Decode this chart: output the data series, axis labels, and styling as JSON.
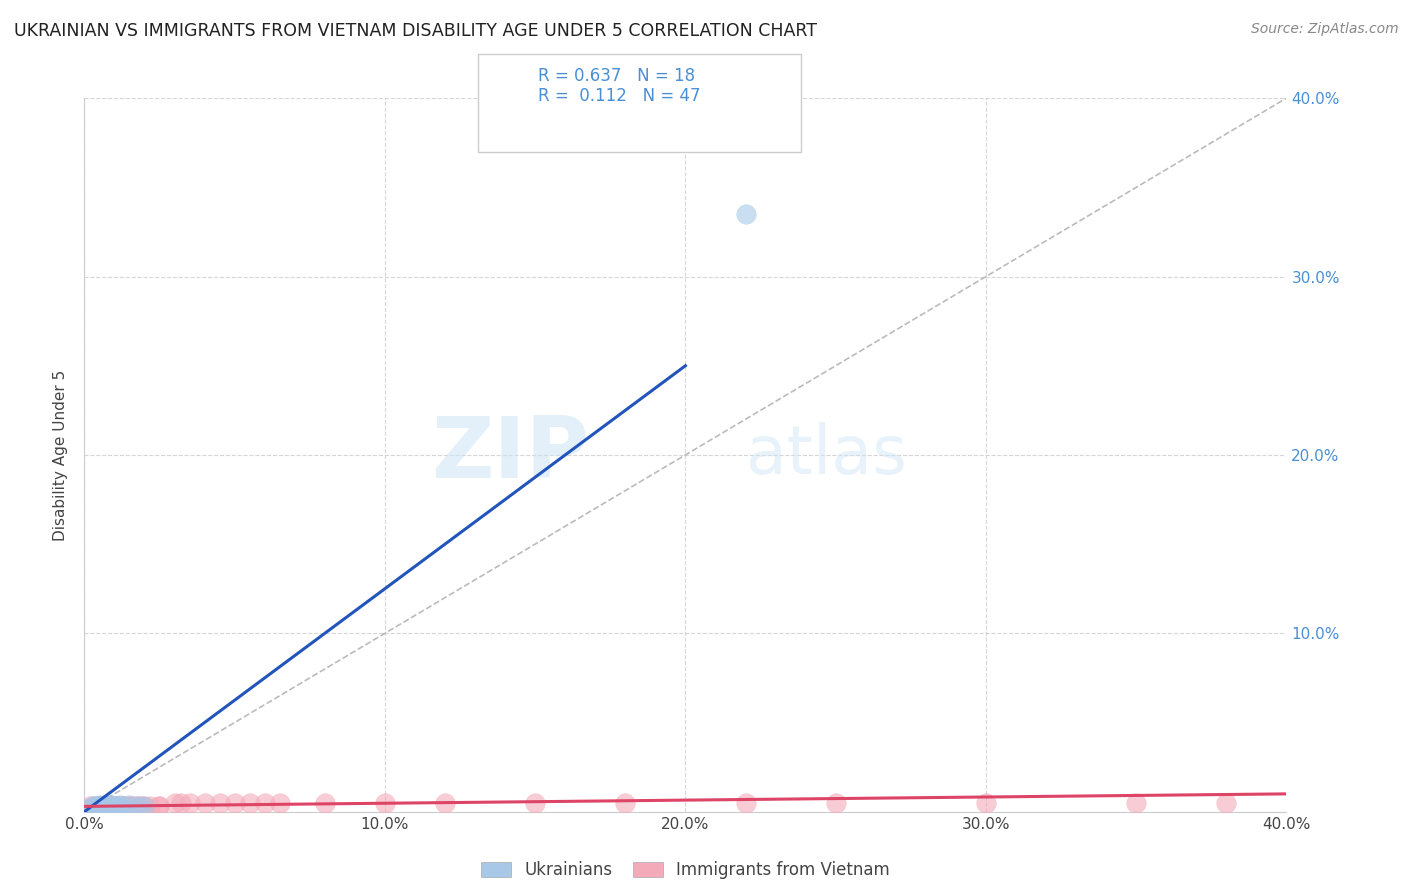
{
  "title": "UKRAINIAN VS IMMIGRANTS FROM VIETNAM DISABILITY AGE UNDER 5 CORRELATION CHART",
  "source": "Source: ZipAtlas.com",
  "ylabel": "Disability Age Under 5",
  "xlim": [
    0.0,
    0.4
  ],
  "ylim": [
    0.0,
    0.4
  ],
  "x_ticks": [
    0.0,
    0.1,
    0.2,
    0.3,
    0.4
  ],
  "y_ticks": [
    0.0,
    0.1,
    0.2,
    0.3,
    0.4
  ],
  "legend_labels": [
    "Ukrainians",
    "Immigrants from Vietnam"
  ],
  "blue_R": "0.637",
  "blue_N": "18",
  "pink_R": "0.112",
  "pink_N": "47",
  "blue_scatter_color": "#a8c8e8",
  "pink_scatter_color": "#f4aab8",
  "blue_line_color": "#2255bb",
  "pink_line_color": "#dd4466",
  "diagonal_color": "#bbbbbb",
  "background_color": "#ffffff",
  "watermark_zip": "ZIP",
  "watermark_atlas": "atlas",
  "title_fontsize": 12.5,
  "source_fontsize": 10,
  "ukrainians_x": [
    0.002,
    0.003,
    0.004,
    0.005,
    0.005,
    0.006,
    0.007,
    0.007,
    0.008,
    0.009,
    0.01,
    0.011,
    0.012,
    0.013,
    0.015,
    0.018,
    0.02,
    0.22
  ],
  "ukrainians_y": [
    0.002,
    0.003,
    0.003,
    0.003,
    0.004,
    0.003,
    0.004,
    0.003,
    0.003,
    0.004,
    0.003,
    0.003,
    0.004,
    0.003,
    0.004,
    0.003,
    0.003,
    0.335
  ],
  "vietnam_x": [
    0.002,
    0.003,
    0.004,
    0.005,
    0.005,
    0.006,
    0.006,
    0.007,
    0.007,
    0.008,
    0.009,
    0.009,
    0.01,
    0.01,
    0.011,
    0.012,
    0.013,
    0.013,
    0.014,
    0.015,
    0.016,
    0.017,
    0.018,
    0.019,
    0.02,
    0.022,
    0.025,
    0.025,
    0.03,
    0.032,
    0.035,
    0.04,
    0.045,
    0.05,
    0.055,
    0.06,
    0.065,
    0.08,
    0.1,
    0.12,
    0.15,
    0.18,
    0.22,
    0.25,
    0.3,
    0.35,
    0.38
  ],
  "vietnam_y": [
    0.003,
    0.003,
    0.003,
    0.003,
    0.003,
    0.003,
    0.003,
    0.003,
    0.003,
    0.003,
    0.003,
    0.003,
    0.003,
    0.003,
    0.003,
    0.003,
    0.003,
    0.003,
    0.003,
    0.003,
    0.003,
    0.003,
    0.003,
    0.003,
    0.003,
    0.003,
    0.003,
    0.003,
    0.005,
    0.005,
    0.005,
    0.005,
    0.005,
    0.005,
    0.005,
    0.005,
    0.005,
    0.005,
    0.005,
    0.005,
    0.005,
    0.005,
    0.005,
    0.005,
    0.005,
    0.005,
    0.005
  ],
  "blue_line_x": [
    0.0,
    0.2
  ],
  "blue_line_y": [
    0.0,
    0.25
  ],
  "pink_line_x": [
    0.0,
    0.4
  ],
  "pink_line_y": [
    0.003,
    0.01
  ]
}
